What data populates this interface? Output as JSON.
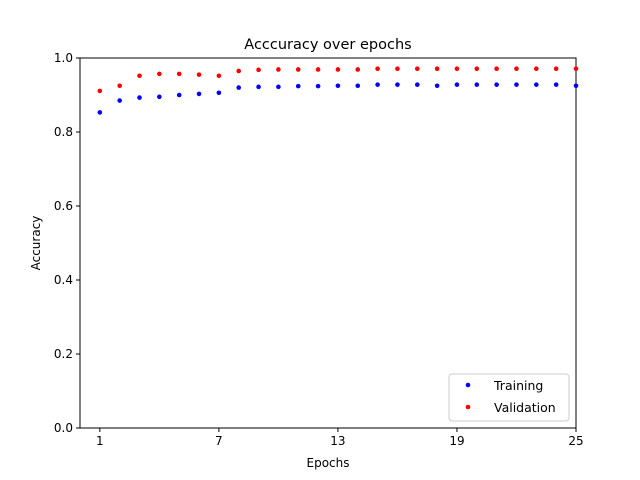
{
  "chart_data": {
    "type": "scatter",
    "title": "Acccuracy over epochs",
    "xlabel": "Epochs",
    "ylabel": "Accuracy",
    "xlim": [
      0,
      25
    ],
    "ylim": [
      0.0,
      1.0
    ],
    "xticks": [
      1,
      7,
      13,
      19,
      25
    ],
    "yticks": [
      0.0,
      0.2,
      0.4,
      0.6,
      0.8,
      1.0
    ],
    "ytick_labels": [
      "0.0",
      "0.2",
      "0.4",
      "0.6",
      "0.8",
      "1.0"
    ],
    "grid": false,
    "legend_position": "lower-right",
    "x": [
      1,
      2,
      3,
      4,
      5,
      6,
      7,
      8,
      9,
      10,
      11,
      12,
      13,
      14,
      15,
      16,
      17,
      18,
      19,
      20,
      21,
      22,
      23,
      24,
      25
    ],
    "series": [
      {
        "name": "Training",
        "color": "#0000ff",
        "values": [
          0.853,
          0.885,
          0.893,
          0.895,
          0.9,
          0.903,
          0.906,
          0.92,
          0.922,
          0.922,
          0.924,
          0.924,
          0.925,
          0.925,
          0.928,
          0.928,
          0.928,
          0.925,
          0.928,
          0.928,
          0.928,
          0.928,
          0.928,
          0.928,
          0.925
        ]
      },
      {
        "name": "Validation",
        "color": "#ff0000",
        "values": [
          0.911,
          0.925,
          0.952,
          0.957,
          0.957,
          0.955,
          0.952,
          0.965,
          0.968,
          0.969,
          0.969,
          0.969,
          0.969,
          0.969,
          0.971,
          0.971,
          0.971,
          0.971,
          0.971,
          0.971,
          0.971,
          0.971,
          0.971,
          0.971,
          0.971
        ]
      }
    ]
  }
}
